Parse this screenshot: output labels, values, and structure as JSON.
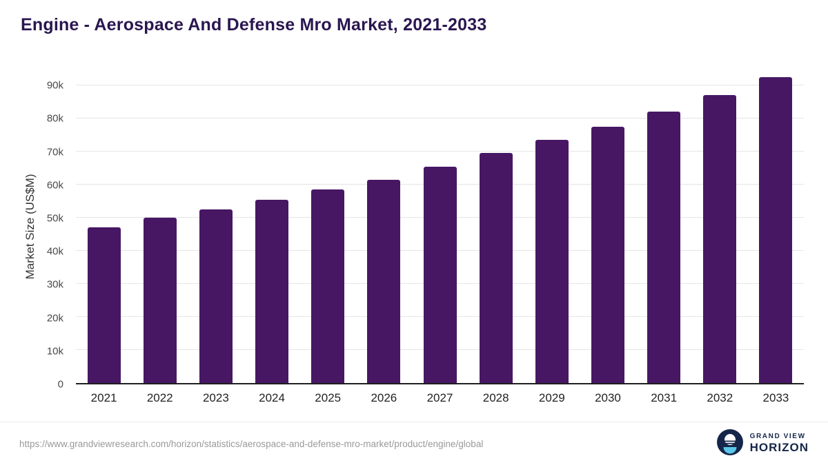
{
  "title": "Engine - Aerospace And Defense Mro Market, 2021-2033",
  "chart_data": {
    "type": "bar",
    "title": "Engine - Aerospace And Defense Mro Market, 2021-2033",
    "xlabel": "",
    "ylabel": "Market Size (US$M)",
    "categories": [
      "2021",
      "2022",
      "2023",
      "2024",
      "2025",
      "2026",
      "2027",
      "2028",
      "2029",
      "2030",
      "2031",
      "2032",
      "2033"
    ],
    "values": [
      47000,
      50000,
      52500,
      55500,
      58500,
      61500,
      65500,
      69500,
      73500,
      77500,
      82000,
      87000,
      92500
    ],
    "ylim": [
      0,
      95000
    ],
    "yticks": [
      {
        "value": 0,
        "label": "0"
      },
      {
        "value": 10000,
        "label": "10k"
      },
      {
        "value": 20000,
        "label": "20k"
      },
      {
        "value": 30000,
        "label": "30k"
      },
      {
        "value": 40000,
        "label": "40k"
      },
      {
        "value": 50000,
        "label": "50k"
      },
      {
        "value": 60000,
        "label": "60k"
      },
      {
        "value": 70000,
        "label": "70k"
      },
      {
        "value": 80000,
        "label": "80k"
      },
      {
        "value": 90000,
        "label": "90k"
      }
    ],
    "grid": "horizontal",
    "legend": "none",
    "bar_color": "#471764"
  },
  "colors": {
    "title": "#2a1650",
    "bar": "#471764",
    "axis_line": "#1f1f1f",
    "gridline": "#e4e4e4",
    "brand_navy": "#15264a",
    "brand_lightblue": "#5bc6e8"
  },
  "footer": {
    "url": "https://www.grandviewresearch.com/horizon/statistics/aerospace-and-defense-mro-market/product/engine/global",
    "brand_line1": "GRAND VIEW",
    "brand_line2": "HORIZON"
  }
}
